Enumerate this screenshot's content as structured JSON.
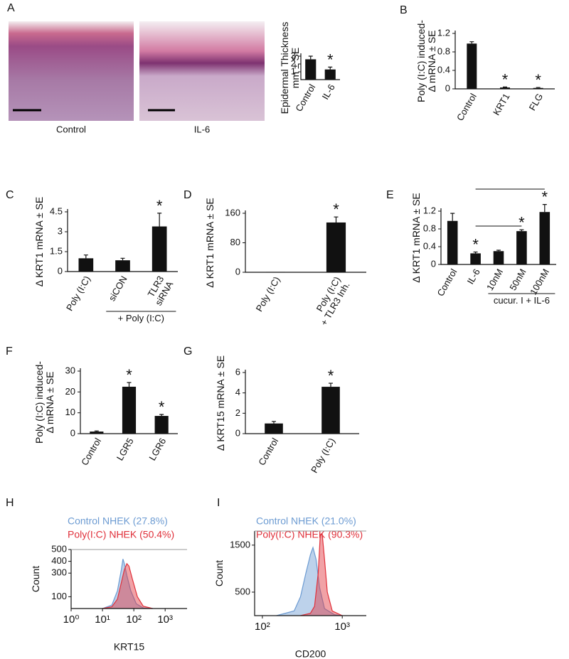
{
  "chart_data": [
    {
      "label": "A",
      "type": "bar",
      "image_captions": [
        "Control",
        "IL-6"
      ],
      "ylabel": [
        "Epidermal Thickness",
        "mm ± SE"
      ],
      "categories": [
        "Control",
        "IL-6"
      ],
      "values": [
        2.6,
        1.3
      ],
      "errors": [
        0.4,
        0.3
      ],
      "annotations": [
        null,
        "*"
      ],
      "color": "#111111",
      "ylim": [
        0,
        3
      ],
      "yticks": [
        1,
        2,
        3
      ]
    },
    {
      "label": "B",
      "type": "bar",
      "ylabel": [
        "Poly (I:C) induced-",
        "Δ mRNA ± SE"
      ],
      "categories": [
        "Control",
        "KRT1",
        "FLG"
      ],
      "values": [
        0.98,
        0.03,
        0.02
      ],
      "errors": [
        0.04,
        0.01,
        0.01
      ],
      "annotations": [
        null,
        "*",
        "*"
      ],
      "color": "#111111",
      "ylim": [
        0,
        1.2
      ],
      "yticks": [
        0,
        0.4,
        0.8,
        1.2
      ]
    },
    {
      "label": "C",
      "type": "bar",
      "ylabel": [
        "Δ KRT1 mRNA ± SE"
      ],
      "categories": [
        [
          "Poly (I:C)"
        ],
        [
          "siCON"
        ],
        [
          "TLR3",
          "siRNA"
        ]
      ],
      "values": [
        1.0,
        0.85,
        3.4
      ],
      "errors": [
        0.25,
        0.15,
        1.0
      ],
      "annotations": [
        null,
        null,
        "*"
      ],
      "group_label": "+ Poly (I:C)",
      "color": "#111111",
      "ylim": [
        0,
        4.5
      ],
      "yticks": [
        0,
        1.5,
        3,
        4.5
      ]
    },
    {
      "label": "D",
      "type": "bar",
      "ylabel": [
        "Δ KRT1 mRNA ± SE"
      ],
      "categories": [
        [
          "Poly (I:C)"
        ],
        [
          "Poly (I:C)",
          "+ TLR3 Inh."
        ]
      ],
      "values": [
        1,
        135
      ],
      "errors": [
        null,
        15
      ],
      "annotations": [
        null,
        "*"
      ],
      "color": "#111111",
      "ylim": [
        0,
        160
      ],
      "yticks": [
        0,
        80,
        160
      ]
    },
    {
      "label": "E",
      "type": "bar",
      "ylabel": [
        "Δ KRT1 mRNA ± SE"
      ],
      "categories": [
        [
          "Control"
        ],
        [
          "IL-6"
        ],
        [
          "10nM"
        ],
        [
          "50nM"
        ],
        [
          "100nM"
        ]
      ],
      "values": [
        0.98,
        0.25,
        0.3,
        0.75,
        1.18
      ],
      "errors": [
        0.17,
        0.03,
        0.02,
        0.03,
        0.17
      ],
      "annotations": [
        null,
        "*",
        null,
        "*",
        "*"
      ],
      "group_label": "cucur. I + IL-6",
      "color": "#111111",
      "ylim": [
        0,
        1.2
      ],
      "yticks": [
        0,
        0.4,
        0.8,
        1.2
      ]
    },
    {
      "label": "F",
      "type": "bar",
      "ylabel": [
        "Poly (I:C) induced-",
        "Δ mRNA ± SE"
      ],
      "categories": [
        [
          "Control"
        ],
        [
          "LGR5"
        ],
        [
          "LGR6"
        ]
      ],
      "values": [
        1,
        22.5,
        8.5
      ],
      "errors": [
        0.3,
        2,
        0.7
      ],
      "annotations": [
        null,
        "*",
        "*"
      ],
      "color": "#111111",
      "ylim": [
        0,
        30
      ],
      "yticks": [
        0,
        10,
        20,
        30
      ]
    },
    {
      "label": "G",
      "type": "bar",
      "ylabel": [
        "Δ KRT15 mRNA ± SE"
      ],
      "categories": [
        [
          "Control"
        ],
        [
          "Poly (I:C)"
        ]
      ],
      "values": [
        1,
        4.6
      ],
      "errors": [
        0.2,
        0.35
      ],
      "annotations": [
        null,
        "*"
      ],
      "color": "#111111",
      "ylim": [
        0,
        6
      ],
      "yticks": [
        0,
        2,
        4,
        6
      ]
    },
    {
      "label": "H",
      "type": "histogram",
      "xlabel": "KRT15",
      "ylabel": "Count",
      "xscale": "log",
      "xlim": [
        1,
        5000
      ],
      "xticks": [
        {
          "value": 1,
          "label": "10⁰"
        },
        {
          "value": 10,
          "label": "10¹"
        },
        {
          "value": 100,
          "label": "10²"
        },
        {
          "value": 1000,
          "label": "10³"
        }
      ],
      "ylim": [
        0,
        500
      ],
      "yticks": [
        100,
        300,
        400,
        500
      ],
      "series": [
        {
          "name": "Control NHEK  (27.8%)",
          "color": "#6c9bd2",
          "x": [
            10,
            20,
            30,
            40,
            45,
            50,
            60,
            80,
            120,
            200,
            400
          ],
          "values": [
            0,
            30,
            150,
            330,
            420,
            380,
            280,
            150,
            40,
            5,
            0
          ]
        },
        {
          "name": "Poly(I:C) NHEK (50.4%)",
          "color": "#e0303a",
          "x": [
            10,
            20,
            30,
            40,
            50,
            60,
            70,
            90,
            130,
            200,
            400
          ],
          "values": [
            0,
            15,
            80,
            220,
            330,
            380,
            360,
            250,
            100,
            20,
            0
          ]
        }
      ]
    },
    {
      "label": "I",
      "type": "histogram",
      "xlabel": "CD200",
      "ylabel": "Count",
      "xscale": "log",
      "xlim": [
        80,
        2000
      ],
      "xticks": [
        {
          "value": 100,
          "label": "10²"
        },
        {
          "value": 1000,
          "label": "10³"
        }
      ],
      "ylim": [
        0,
        1800
      ],
      "yticks": [
        500,
        1500
      ],
      "series": [
        {
          "name": "Control NHEK  (21.0%)",
          "color": "#6c9bd2",
          "x": [
            150,
            250,
            300,
            350,
            400,
            430,
            470,
            520,
            600,
            800,
            1000
          ],
          "values": [
            0,
            100,
            400,
            900,
            1300,
            1450,
            1200,
            600,
            150,
            20,
            0
          ]
        },
        {
          "name": "Poly(I:C) NHEK (90.3%)",
          "color": "#e0303a",
          "x": [
            300,
            400,
            450,
            500,
            530,
            560,
            600,
            650,
            750,
            1000
          ],
          "values": [
            0,
            50,
            200,
            900,
            1700,
            1750,
            1200,
            500,
            100,
            0
          ]
        }
      ]
    }
  ]
}
